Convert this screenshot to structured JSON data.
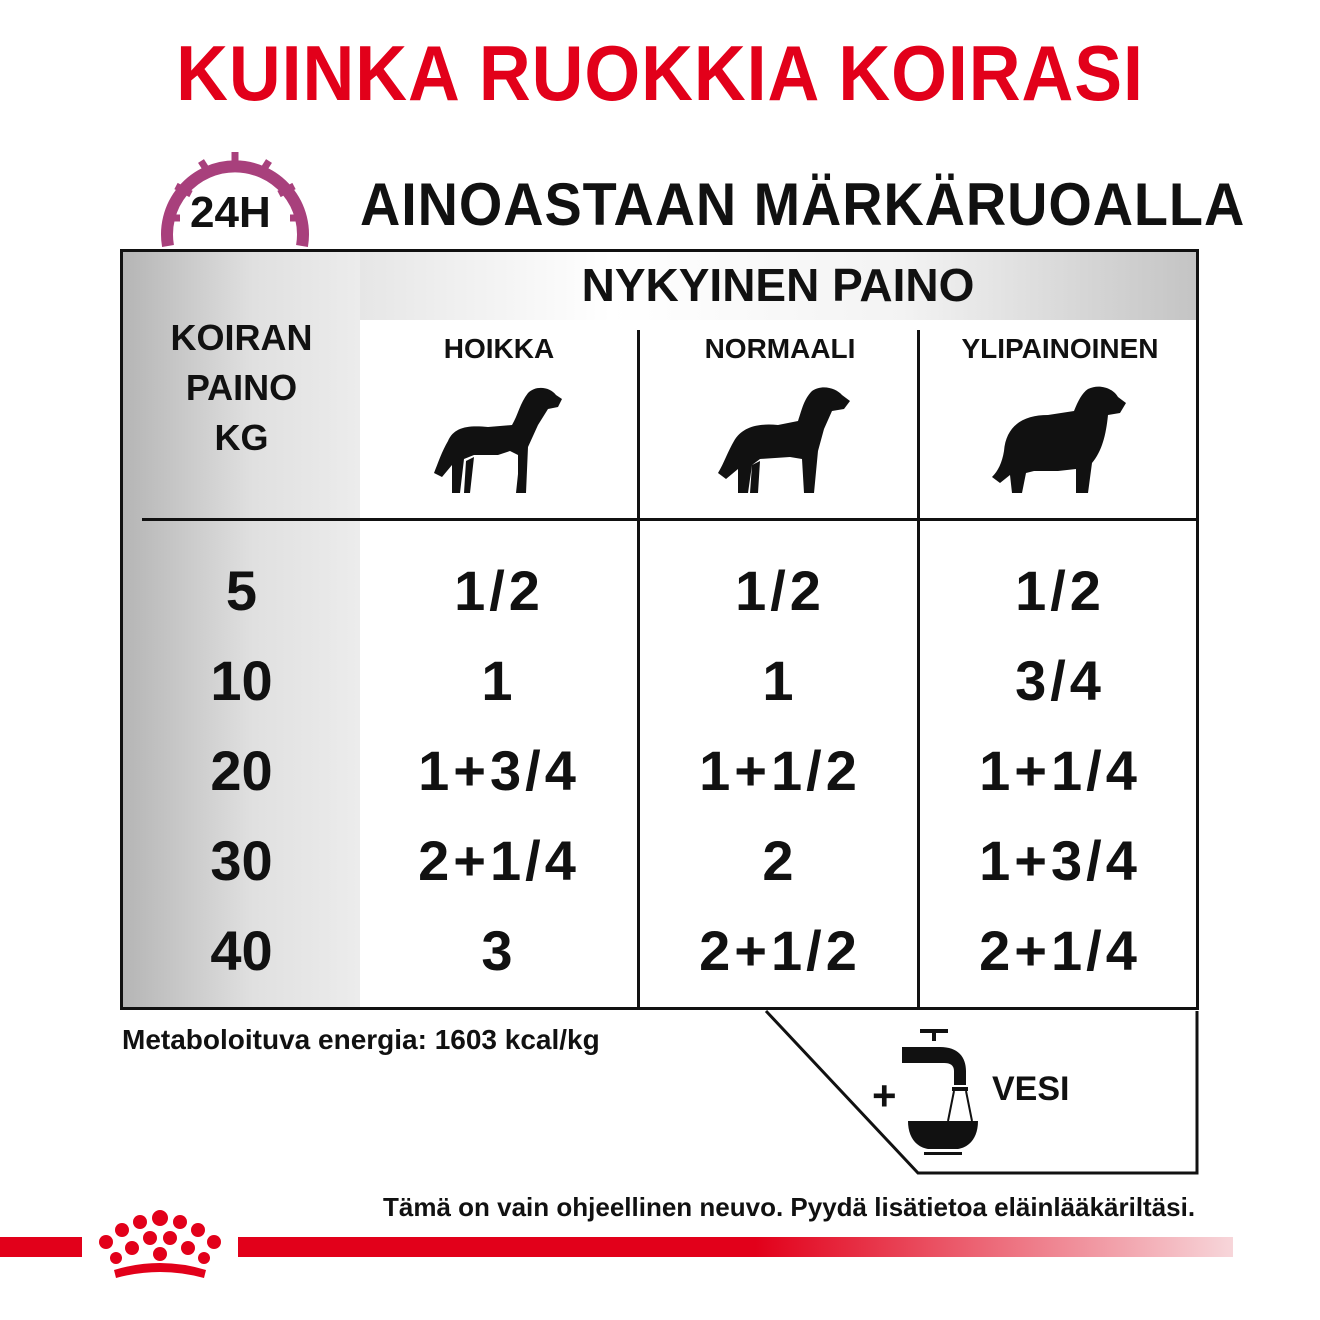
{
  "title": "KUINKA RUOKKIA KOIRASI",
  "subtitle": "AINOASTAAN MÄRKÄRUOALLA",
  "clock_badge": {
    "label": "24H",
    "color": "#a8407c"
  },
  "table": {
    "header": "NYKYINEN PAINO",
    "row_header": [
      "KOIRAN",
      "PAINO",
      "KG"
    ],
    "columns": [
      "HOIKKA",
      "NORMAALI",
      "YLIPAINOINEN"
    ],
    "rows": [
      {
        "kg": "5",
        "values": [
          "1/2",
          "1/2",
          "1/2"
        ]
      },
      {
        "kg": "10",
        "values": [
          "1",
          "1",
          "3/4"
        ]
      },
      {
        "kg": "20",
        "values": [
          "1+3/4",
          "1+1/2",
          "1+1/4"
        ]
      },
      {
        "kg": "30",
        "values": [
          "2+1/4",
          "2",
          "1+3/4"
        ]
      },
      {
        "kg": "40",
        "values": [
          "3",
          "2+1/2",
          "2+1/4"
        ]
      }
    ]
  },
  "energy": "Metaboloituva energia: 1603 kcal/kg",
  "water": {
    "plus": "+",
    "label": "VESI",
    "icon": "tap-bowl-icon"
  },
  "note": "Tämä on vain ohjeellinen neuvo. Pyydä lisätietoa eläinlääkäriltäsi.",
  "colors": {
    "brand_red": "#e2001a",
    "text": "#111111"
  }
}
